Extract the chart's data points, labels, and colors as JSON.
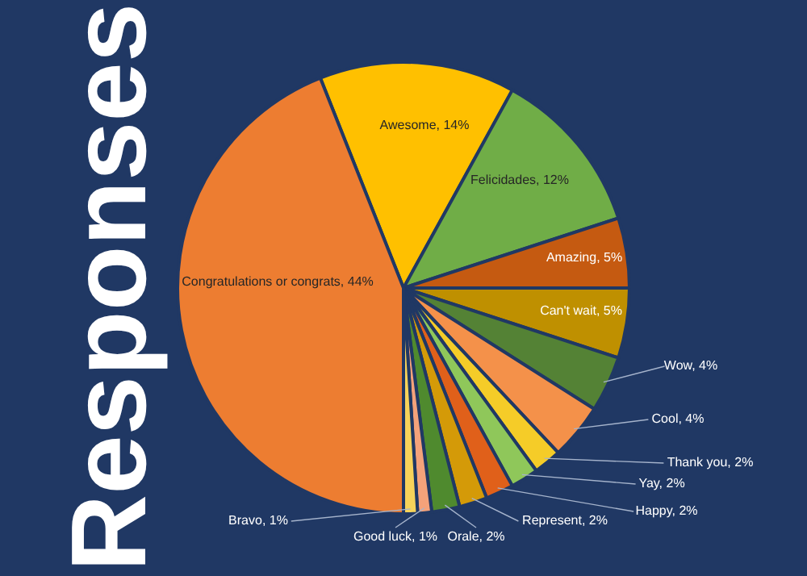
{
  "chart_data": {
    "type": "pie",
    "title": "Responses",
    "categories": [
      "Awesome",
      "Felicidades",
      "Amazing",
      "Can't wait",
      "Wow",
      "Cool",
      "Thank you",
      "Yay",
      "Happy",
      "Represent",
      "Orale",
      "Good luck",
      "Bravo",
      "Congratulations or congrats"
    ],
    "values": [
      14,
      12,
      5,
      5,
      4,
      4,
      2,
      2,
      2,
      2,
      2,
      1,
      1,
      44
    ],
    "colors": [
      "#ffc000",
      "#70ad47",
      "#c55a11",
      "#bf9000",
      "#548235",
      "#f4914a",
      "#f5cc28",
      "#8fc75a",
      "#e0601a",
      "#d49a08",
      "#4f8a2e",
      "#f4a27a",
      "#f7d35a",
      "#ed7d31"
    ],
    "value_labels": [
      "14%",
      "12%",
      "5%",
      "5%",
      "4%",
      "4%",
      "2%",
      "2%",
      "2%",
      "2%",
      "2%",
      "1%",
      "1%",
      "44%"
    ]
  }
}
